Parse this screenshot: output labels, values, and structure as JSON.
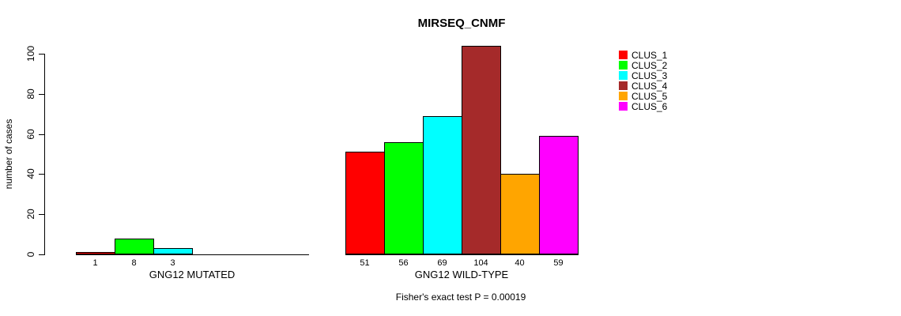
{
  "chart_data": {
    "type": "bar",
    "title": "MIRSEQ_CNMF",
    "ylabel": "number of cases",
    "ylim": [
      0,
      110
    ],
    "yticks": [
      0,
      20,
      40,
      60,
      80,
      100
    ],
    "grid": false,
    "legend_position": "right",
    "clusters": [
      {
        "name": "CLUS_1",
        "color": "#FF0000"
      },
      {
        "name": "CLUS_2",
        "color": "#00FF00"
      },
      {
        "name": "CLUS_3",
        "color": "#00FFFF"
      },
      {
        "name": "CLUS_4",
        "color": "#A52A2A"
      },
      {
        "name": "CLUS_5",
        "color": "#FFA500"
      },
      {
        "name": "CLUS_6",
        "color": "#FF00FF"
      }
    ],
    "groups": [
      {
        "label": "GNG12 MUTATED",
        "values": [
          1,
          8,
          3,
          0,
          0,
          0
        ],
        "bar_labels": [
          "1",
          "8",
          "3",
          "",
          "",
          ""
        ]
      },
      {
        "label": "GNG12 WILD-TYPE",
        "values": [
          51,
          56,
          69,
          104,
          40,
          59
        ],
        "bar_labels": [
          "51",
          "56",
          "69",
          "104",
          "40",
          "59"
        ]
      }
    ],
    "footnote": "Fisher's exact test P = 0.00019"
  }
}
